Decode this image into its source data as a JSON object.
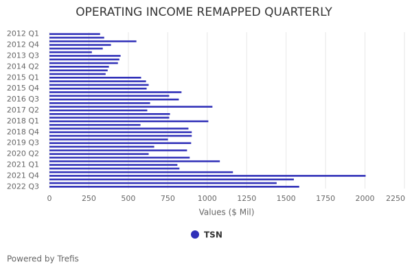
{
  "chart_data": {
    "type": "hbar",
    "title": "OPERATING INCOME REMAPPED QUARTERLY",
    "categories": [
      "2012 Q1",
      null,
      null,
      "2012 Q4",
      null,
      null,
      "2013 Q3",
      null,
      null,
      "2014 Q2",
      null,
      null,
      "2015 Q1",
      null,
      null,
      "2015 Q4",
      null,
      null,
      "2016 Q3",
      null,
      null,
      "2017 Q2",
      null,
      null,
      "2018 Q1",
      null,
      null,
      "2018 Q4",
      null,
      null,
      "2019 Q3",
      null,
      null,
      "2020 Q2",
      null,
      null,
      "2021 Q1",
      null,
      null,
      "2021 Q4",
      null,
      null,
      "2022 Q3"
    ],
    "series": [
      {
        "name": "TSN",
        "color": "#3030b8",
        "values": [
          321,
          347,
          551,
          390,
          338,
          269,
          451,
          443,
          434,
          377,
          369,
          356,
          581,
          612,
          629,
          616,
          837,
          759,
          820,
          638,
          1033,
          620,
          764,
          759,
          1007,
          577,
          881,
          902,
          902,
          751,
          898,
          664,
          872,
          629,
          889,
          1080,
          811,
          824,
          1163,
          2004,
          1549,
          1440,
          1583
        ]
      }
    ],
    "xlim": [
      0,
      2250
    ],
    "xticks": [
      0,
      250,
      500,
      750,
      1000,
      1250,
      1500,
      1750,
      2000,
      2250
    ],
    "xlabel": "Values ($ Mil)",
    "grid": true,
    "footer": "Powered by Trefis"
  }
}
